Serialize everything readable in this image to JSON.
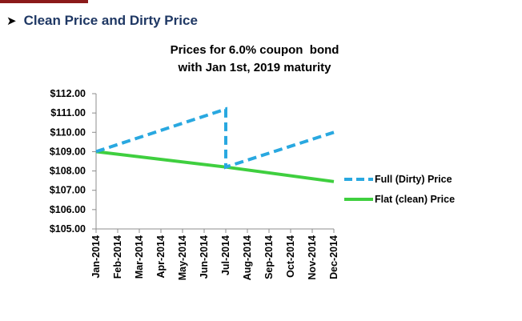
{
  "slide": {
    "heading": "Clean Price and Dirty Price",
    "bullet_icon": "arrowhead-bullet-icon",
    "accent_color": "#8b1a1a",
    "heading_color": "#1f3864"
  },
  "chart_data": {
    "type": "line",
    "title_lines": [
      "Prices for 6.0% coupon  bond",
      "with Jan 1st, 2019 maturity"
    ],
    "xlabel": "",
    "ylabel": "",
    "categories": [
      "Jan-2014",
      "Feb-2014",
      "Mar-2014",
      "Apr-2014",
      "May-2014",
      "Jun-2014",
      "Jul-2014",
      "Aug-2014",
      "Sep-2014",
      "Oct-2014",
      "Nov-2014",
      "Dec-2014"
    ],
    "y_ticks": [
      "$112.00",
      "$111.00",
      "$110.00",
      "$109.00",
      "$108.00",
      "$107.00",
      "$106.00",
      "$105.00"
    ],
    "ylim": [
      105,
      112
    ],
    "grid": false,
    "legend_position": "right",
    "series": [
      {
        "name": "Full (Dirty) Price",
        "style": "dashed",
        "color": "#29a8e0",
        "points": [
          {
            "x": "Jan-2014",
            "y": 109.0
          },
          {
            "x": "Jul-2014",
            "y": 111.2
          },
          {
            "x": "Jul-2014",
            "y": 108.2
          },
          {
            "x": "Dec-2014",
            "y": 110.0
          }
        ]
      },
      {
        "name": "Flat (clean) Price",
        "style": "solid",
        "color": "#3fcf3f",
        "points": [
          {
            "x": "Jan-2014",
            "y": 109.0
          },
          {
            "x": "Jul-2014",
            "y": 108.2
          },
          {
            "x": "Dec-2014",
            "y": 107.45
          }
        ]
      }
    ]
  }
}
